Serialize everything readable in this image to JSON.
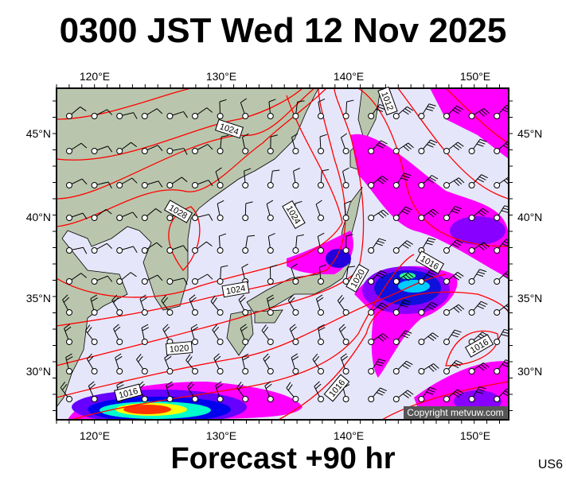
{
  "title": "0300 JST Wed 12 Nov 2025",
  "footer": "Forecast +90 hr",
  "region_code": "US6",
  "copyright": "Copyright metvuw.com",
  "axes": {
    "top_lon_labels": [
      "120°E",
      "130°E",
      "140°E",
      "150°E"
    ],
    "lat_labels": [
      "45°N",
      "40°N",
      "35°N",
      "30°N"
    ]
  },
  "isobar_labels": [
    "1024",
    "1012",
    "1028",
    "1024",
    "1024",
    "1020",
    "1020",
    "1016",
    "1016",
    "1016",
    "1016"
  ],
  "colors": {
    "sea": "#e6e6fa",
    "land": "#b9c6ad",
    "isobar": "#ff0000",
    "precip_light": "#ff00ff",
    "precip_mid": "#8800ff",
    "precip_heavy": "#0000dd",
    "precip_core": "#00ffcc"
  }
}
